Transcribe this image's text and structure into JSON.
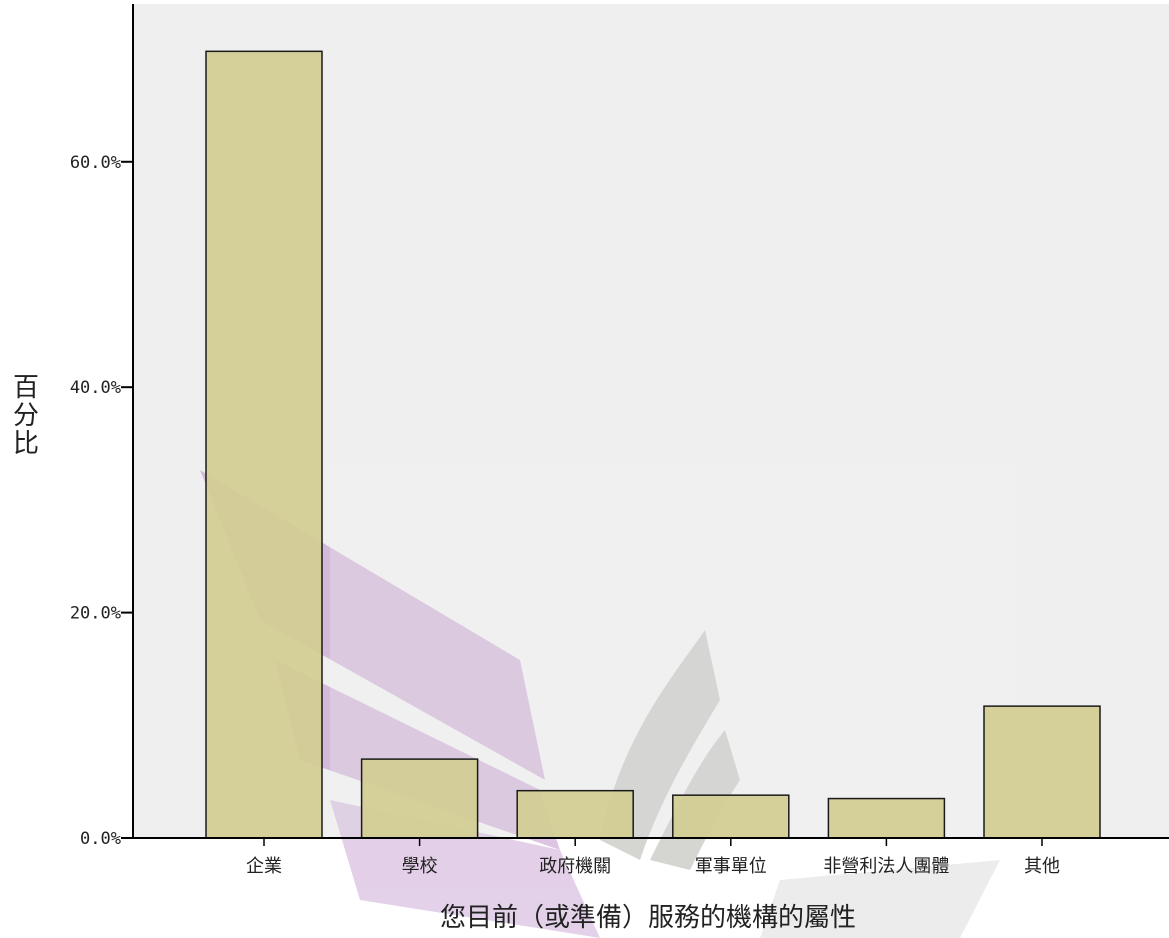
{
  "chart_data": {
    "type": "bar",
    "title": "",
    "xlabel": "您目前（或準備）服務的機構的屬性",
    "ylabel_chars": [
      "百",
      "分",
      "比"
    ],
    "categories": [
      "企業",
      "學校",
      "政府機關",
      "軍事單位",
      "非營利法人團體",
      "其他"
    ],
    "values": [
      69.8,
      7.0,
      4.2,
      3.8,
      3.5,
      11.7
    ],
    "unit": "%",
    "ylim": [
      0,
      74
    ],
    "yticks": [
      0,
      20,
      40,
      60
    ],
    "ytick_labels": [
      "0.0%",
      "20.0%",
      "40.0%",
      "60.0%"
    ],
    "grid": false
  },
  "colors": {
    "plot_bg": "#efefef",
    "bar_fill": "#d3cd93",
    "bar_stroke": "#1a1a1a",
    "axis": "#000000"
  }
}
